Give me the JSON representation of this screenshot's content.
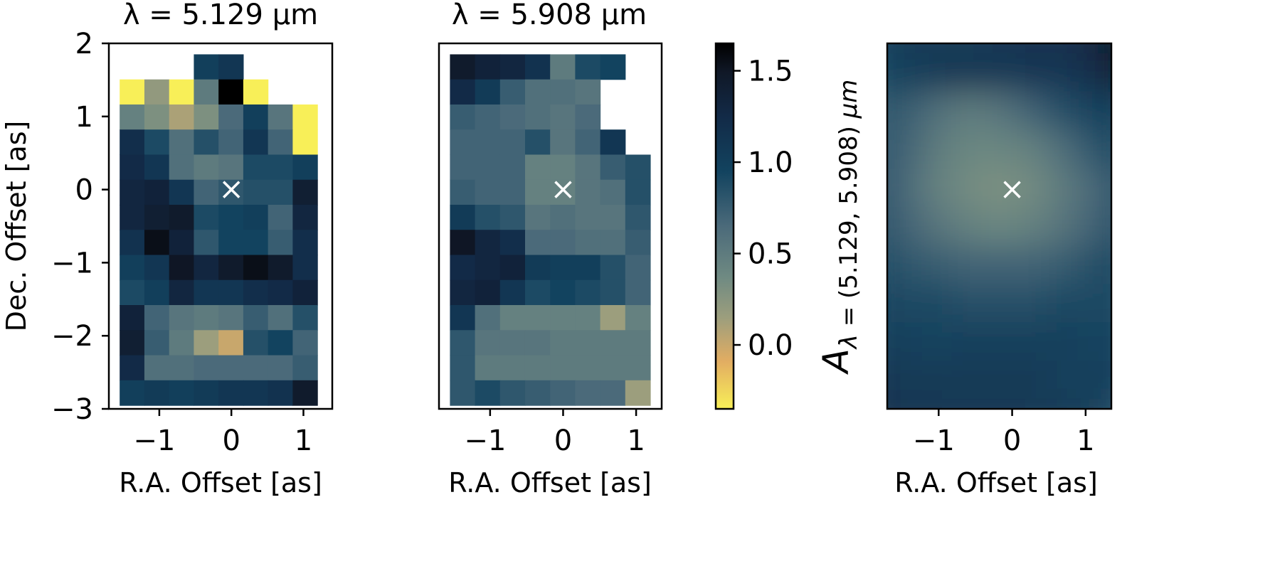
{
  "figure": {
    "title_left": "λ = 5.129 µm",
    "title_middle": "λ = 5.908 µm",
    "xlabel": "R.A. Offset [as]",
    "ylabel": "Dec. Offset [as]",
    "colorbar_label": "Aλ = (5.129, 5.908) µm"
  },
  "colors": {
    "cmap_stops": [
      "#f8ef58",
      "#e2ad62",
      "#9c9e7d",
      "#6f8a82",
      "#4b6a7a",
      "#12435f",
      "#122a47",
      "#101827",
      "#000000"
    ],
    "cmap_positions": [
      0.0,
      0.13,
      0.25,
      0.36,
      0.5,
      0.65,
      0.8,
      0.92,
      1.0
    ],
    "marker": "#ffffff"
  },
  "chart_data": [
    {
      "type": "heatmap",
      "title": "λ = 5.129 µm",
      "xlabel": "R.A. Offset [as]",
      "ylabel": "Dec. Offset [as]",
      "xlim": [
        -1.7,
        1.4
      ],
      "ylim": [
        -3,
        2
      ],
      "xticks": [
        -1,
        0,
        1
      ],
      "xtick_labels": [
        "−1",
        "0",
        "1"
      ],
      "yticks": [
        2,
        1,
        0,
        -1,
        -2,
        -3
      ],
      "ytick_labels": [
        "2",
        "1",
        "0",
        "−1",
        "−2",
        "−3"
      ],
      "x0": -1.55,
      "dx": 0.343,
      "y_top": 1.85,
      "dy": 0.343,
      "marker": [
        0,
        0
      ],
      "grid": [
        [
          null,
          null,
          null,
          1.0,
          1.1,
          null,
          null,
          null
        ],
        [
          -0.35,
          0.2,
          -0.35,
          0.5,
          1.65,
          -0.35,
          null,
          null
        ],
        [
          0.45,
          0.3,
          0.1,
          0.3,
          0.65,
          1.0,
          0.55,
          -0.35
        ],
        [
          1.2,
          0.9,
          0.6,
          0.85,
          0.7,
          1.1,
          0.7,
          -0.35
        ],
        [
          1.25,
          1.1,
          0.6,
          0.5,
          0.55,
          0.9,
          0.9,
          1.0
        ],
        [
          1.3,
          1.35,
          1.1,
          0.7,
          0.8,
          0.85,
          0.85,
          1.4
        ],
        [
          1.3,
          1.4,
          1.45,
          0.9,
          0.95,
          1.0,
          0.7,
          1.3
        ],
        [
          1.15,
          1.55,
          1.35,
          0.8,
          0.95,
          0.95,
          0.75,
          1.2
        ],
        [
          1.0,
          1.1,
          1.5,
          1.3,
          1.45,
          1.55,
          1.45,
          1.2
        ],
        [
          0.9,
          1.0,
          1.3,
          1.1,
          1.1,
          1.2,
          1.25,
          1.35
        ],
        [
          1.35,
          0.7,
          0.55,
          0.5,
          0.55,
          0.75,
          0.6,
          0.85
        ],
        [
          1.4,
          0.75,
          0.5,
          0.15,
          0.0,
          0.85,
          0.95,
          0.7
        ],
        [
          1.25,
          0.6,
          0.6,
          0.65,
          0.65,
          0.65,
          0.65,
          0.75
        ],
        [
          1.0,
          1.05,
          1.0,
          1.05,
          1.1,
          1.1,
          1.15,
          1.45
        ]
      ]
    },
    {
      "type": "heatmap",
      "title": "λ = 5.908 µm",
      "xlabel": "R.A. Offset [as]",
      "ylabel": "",
      "xlim": [
        -1.7,
        1.35
      ],
      "ylim": [
        -3,
        2
      ],
      "xticks": [
        -1,
        0,
        1
      ],
      "xtick_labels": [
        "−1",
        "0",
        "1"
      ],
      "x0": -1.55,
      "dx": 0.343,
      "y_top": 1.85,
      "dy": 0.343,
      "marker": [
        0,
        0
      ],
      "grid": [
        [
          1.45,
          1.35,
          1.3,
          1.15,
          0.5,
          0.9,
          0.95,
          null
        ],
        [
          1.25,
          1.05,
          0.75,
          0.6,
          0.6,
          0.55,
          null,
          null
        ],
        [
          0.75,
          0.7,
          0.65,
          0.6,
          0.55,
          0.65,
          null,
          null
        ],
        [
          0.7,
          0.7,
          0.7,
          0.85,
          0.55,
          0.7,
          1.1,
          null
        ],
        [
          0.7,
          0.7,
          0.7,
          0.45,
          0.45,
          0.55,
          0.75,
          0.85
        ],
        [
          0.75,
          0.7,
          0.7,
          0.45,
          0.45,
          0.55,
          0.6,
          0.85
        ],
        [
          1.05,
          0.85,
          0.8,
          0.55,
          0.6,
          0.55,
          0.55,
          0.8
        ],
        [
          1.5,
          1.3,
          1.2,
          0.65,
          0.65,
          0.6,
          0.6,
          0.75
        ],
        [
          1.25,
          1.3,
          1.35,
          1.05,
          1.0,
          1.0,
          0.85,
          0.7
        ],
        [
          1.3,
          1.35,
          1.1,
          0.9,
          0.95,
          0.9,
          0.85,
          0.7
        ],
        [
          1.1,
          0.6,
          0.45,
          0.45,
          0.45,
          0.45,
          0.15,
          0.45
        ],
        [
          0.8,
          0.55,
          0.55,
          0.55,
          0.5,
          0.5,
          0.5,
          0.5
        ],
        [
          0.8,
          0.5,
          0.5,
          0.5,
          0.5,
          0.5,
          0.5,
          0.5
        ],
        [
          0.8,
          0.9,
          0.8,
          0.75,
          0.7,
          0.65,
          0.65,
          0.15
        ]
      ]
    },
    {
      "type": "heatmap",
      "title": "",
      "xlabel": "R.A. Offset [as]",
      "ylabel": "",
      "xlim": [
        -1.7,
        1.35
      ],
      "ylim": [
        -3,
        2
      ],
      "xticks": [
        -1,
        0,
        1
      ],
      "xtick_labels": [
        "−1",
        "0",
        "1"
      ],
      "smooth": true,
      "marker": [
        0,
        0
      ],
      "grid": [
        [
          0.95,
          1.05,
          1.05,
          1.05,
          1.1,
          1.15,
          1.15,
          1.3,
          1.6
        ],
        [
          0.9,
          1.0,
          1.05,
          1.1,
          1.05,
          1.1,
          1.1,
          1.2,
          1.45
        ],
        [
          0.8,
          0.75,
          0.6,
          0.5,
          0.55,
          0.7,
          0.85,
          0.95,
          1.0
        ],
        [
          0.8,
          0.7,
          0.5,
          0.4,
          0.4,
          0.45,
          0.6,
          0.8,
          0.9
        ],
        [
          0.85,
          0.65,
          0.45,
          0.35,
          0.3,
          0.35,
          0.5,
          0.65,
          0.85
        ],
        [
          0.85,
          0.7,
          0.55,
          0.45,
          0.4,
          0.45,
          0.55,
          0.7,
          0.85
        ],
        [
          0.9,
          0.8,
          0.75,
          0.7,
          0.7,
          0.7,
          0.75,
          0.85,
          0.9
        ],
        [
          0.95,
          0.9,
          0.9,
          0.85,
          0.85,
          0.85,
          0.9,
          0.9,
          0.9
        ],
        [
          1.0,
          1.0,
          0.95,
          1.0,
          1.0,
          1.0,
          1.0,
          0.95,
          0.95
        ],
        [
          1.1,
          1.05,
          1.05,
          1.05,
          1.05,
          1.05,
          1.0,
          1.0,
          0.95
        ],
        [
          1.2,
          1.1,
          1.1,
          1.05,
          1.1,
          1.05,
          1.05,
          1.0,
          0.8
        ]
      ]
    },
    {
      "type": "colorbar",
      "label": "Aλ = (5.129, 5.908) µm",
      "range": [
        -0.35,
        1.65
      ],
      "ticks": [
        0.0,
        0.5,
        1.0,
        1.5
      ],
      "tick_labels": [
        "0.0",
        "0.5",
        "1.0",
        "1.5"
      ]
    }
  ]
}
